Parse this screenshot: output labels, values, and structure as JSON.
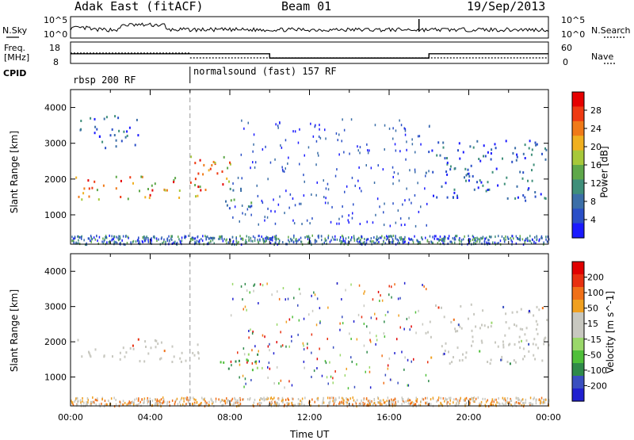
{
  "header": {
    "site": "Adak East (fitACF)",
    "beam": "Beam 01",
    "date": "19/Sep/2013"
  },
  "strip": {
    "nsky_label": "N.Sky",
    "nsearch_label": "N.Search",
    "nsky_ticks": [
      "10^5",
      "10^0"
    ],
    "nsearch_ticks": [
      "10^5",
      "10^0"
    ],
    "freq_label": [
      "Freq.",
      "[MHz]"
    ],
    "freq_ticks": [
      "18",
      "8"
    ],
    "nave_label": "Nave",
    "nave_ticks": [
      "60",
      "0"
    ],
    "cpid_label": "CPID",
    "programs": [
      {
        "name": "rbsp 200 RF",
        "start_h": 0
      },
      {
        "name": "normalsound (fast) 157 RF",
        "start_h": 6
      }
    ],
    "freq_steps": [
      {
        "from_h": 0,
        "to_h": 10,
        "mhz": 12.5
      },
      {
        "from_h": 10,
        "to_h": 18,
        "mhz": 10.5
      },
      {
        "from_h": 18,
        "to_h": 24,
        "mhz": 12.5
      }
    ]
  },
  "colors": {
    "frame": "#000000",
    "grid_dash": "#999999",
    "power_scale": [
      "#1a1aff",
      "#2a4fc7",
      "#3c6fa8",
      "#3f8f7a",
      "#5fa84a",
      "#a7c83a",
      "#f0b020",
      "#f07a18",
      "#ef3a12",
      "#e60000"
    ],
    "velocity_scale": [
      "#2020d0",
      "#3a4fc0",
      "#2f8a4a",
      "#4fbf3a",
      "#9ad86a",
      "#c8c8c0",
      "#c8c8c0",
      "#f0a020",
      "#f07018",
      "#e83010",
      "#e00000"
    ]
  },
  "chart_data": [
    {
      "type": "heatmap",
      "panel": "power",
      "ylabel": "Slant Range [km]",
      "ylim": [
        180,
        4500
      ],
      "yticks": [
        "1000",
        "2000",
        "3000",
        "4000"
      ],
      "xlim_h": [
        0,
        24
      ],
      "colorbar": {
        "title": "Power [dB]",
        "ticks": [
          "4",
          "8",
          "12",
          "16",
          "20",
          "24",
          "28"
        ],
        "range": [
          0,
          32
        ]
      },
      "regions": [
        {
          "t0": 0.2,
          "t1": 6.6,
          "r0": 1450,
          "r1": 2100,
          "level": "strong"
        },
        {
          "t0": 6.0,
          "t1": 8.0,
          "r0": 1700,
          "r1": 2700,
          "level": "strong"
        },
        {
          "t0": 0.4,
          "t1": 3.5,
          "r0": 2900,
          "r1": 3800,
          "level": "weak"
        },
        {
          "t0": 7.5,
          "t1": 9.5,
          "r0": 1200,
          "r1": 1800,
          "level": "medium"
        },
        {
          "t0": 17.8,
          "t1": 24,
          "r0": 1400,
          "r1": 3100,
          "level": "weak"
        }
      ]
    },
    {
      "type": "heatmap",
      "panel": "velocity",
      "ylabel": "Slant Range [km]",
      "ylim": [
        180,
        4500
      ],
      "yticks": [
        "1000",
        "2000",
        "3000",
        "4000"
      ],
      "xlim_h": [
        0,
        24
      ],
      "xlabel": "Time UT",
      "xticks": [
        "00:00",
        "04:00",
        "08:00",
        "12:00",
        "16:00",
        "20:00",
        "00:00"
      ],
      "colorbar": {
        "title": "Velocity [m s^-1]",
        "ticks": [
          "200",
          "100",
          "50",
          "15",
          "-15",
          "-50",
          "-100",
          "-200"
        ]
      },
      "regions": [
        {
          "t0": 0.2,
          "t1": 6.6,
          "r0": 1450,
          "r1": 2100,
          "level": "ground"
        },
        {
          "t0": 7.5,
          "t1": 9.5,
          "r0": 1200,
          "r1": 1800,
          "level": "green"
        },
        {
          "t0": 17.8,
          "t1": 24,
          "r0": 1400,
          "r1": 3100,
          "level": "ground"
        }
      ]
    }
  ]
}
